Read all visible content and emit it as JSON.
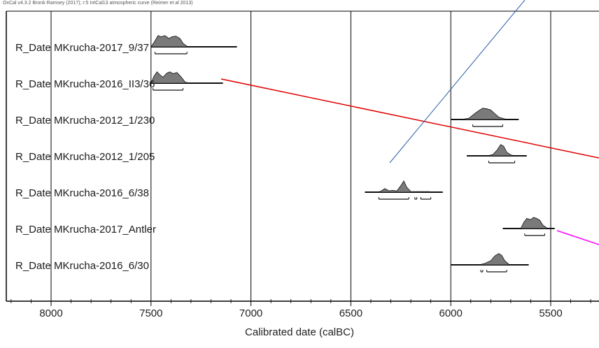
{
  "header": "OxCal v4.3.2 Bronk Ramsey (2017); r:5 IntCal13 atmospheric curve (Reimer et al 2013)",
  "chart_data": {
    "type": "area",
    "title": "",
    "xlabel": "Calibrated date (calBC)",
    "ylabel": "",
    "xlim": [
      8230,
      5240
    ],
    "x_direction": "decreasing",
    "xticks": [
      8000,
      7500,
      7000,
      6500,
      6000,
      5500
    ],
    "xtick_labels": [
      "8000",
      "7500",
      "7000",
      "6500",
      "6000",
      "5500"
    ],
    "minor_tick_step": 100,
    "grid": "vertical lines at major ticks",
    "colors": {
      "distribution": "#7a7a7a",
      "outline": "#111111",
      "axis": "#000000",
      "red_line": "#e00000",
      "blue_line": "#2a5da8",
      "magenta_line": "#ff00ff"
    },
    "series": [
      {
        "name": "R_Date MKrucha-2017_9/37",
        "range": [
          7500,
          7070
        ],
        "profile": [
          [
            7500,
            0
          ],
          [
            7480,
            0.5
          ],
          [
            7465,
            0.95
          ],
          [
            7450,
            0.85
          ],
          [
            7430,
            0.95
          ],
          [
            7410,
            0.7
          ],
          [
            7395,
            0.85
          ],
          [
            7375,
            0.9
          ],
          [
            7355,
            0.7
          ],
          [
            7340,
            0.3
          ],
          [
            7320,
            0.05
          ],
          [
            7300,
            0
          ]
        ],
        "hpd_95": [
          [
            7480,
            7320
          ]
        ]
      },
      {
        "name": "R_Date MKrucha-2016_II3/36",
        "range": [
          7500,
          7140
        ],
        "profile": [
          [
            7500,
            0
          ],
          [
            7485,
            0.6
          ],
          [
            7470,
            0.95
          ],
          [
            7455,
            0.7
          ],
          [
            7440,
            0.5
          ],
          [
            7420,
            0.85
          ],
          [
            7405,
            0.95
          ],
          [
            7390,
            0.8
          ],
          [
            7370,
            0.9
          ],
          [
            7350,
            0.55
          ],
          [
            7330,
            0.1
          ],
          [
            7310,
            0
          ]
        ],
        "hpd_95": [
          [
            7490,
            7340
          ]
        ]
      },
      {
        "name": "R_Date MKrucha-2012_1/230",
        "range": [
          6000,
          5660
        ],
        "profile": [
          [
            5950,
            0
          ],
          [
            5910,
            0.1
          ],
          [
            5880,
            0.5
          ],
          [
            5860,
            0.75
          ],
          [
            5840,
            0.95
          ],
          [
            5820,
            0.9
          ],
          [
            5800,
            0.8
          ],
          [
            5780,
            0.5
          ],
          [
            5760,
            0.2
          ],
          [
            5730,
            0.05
          ],
          [
            5700,
            0
          ]
        ],
        "hpd_95": [
          [
            5890,
            5740
          ]
        ]
      },
      {
        "name": "R_Date MKrucha-2012_1/205",
        "range": [
          5920,
          5620
        ],
        "profile": [
          [
            5820,
            0
          ],
          [
            5790,
            0.1
          ],
          [
            5770,
            0.45
          ],
          [
            5750,
            0.95
          ],
          [
            5735,
            0.8
          ],
          [
            5720,
            0.3
          ],
          [
            5700,
            0.08
          ],
          [
            5680,
            0
          ]
        ],
        "hpd_95": [
          [
            5810,
            5680
          ]
        ]
      },
      {
        "name": "R_Date MKrucha-2016_6/38",
        "range": [
          6430,
          6040
        ],
        "profile": [
          [
            6370,
            0
          ],
          [
            6350,
            0.08
          ],
          [
            6330,
            0.3
          ],
          [
            6310,
            0.12
          ],
          [
            6290,
            0.15
          ],
          [
            6270,
            0.1
          ],
          [
            6250,
            0.55
          ],
          [
            6235,
            0.95
          ],
          [
            6220,
            0.4
          ],
          [
            6200,
            0.06
          ],
          [
            6150,
            0.05
          ],
          [
            6110,
            0.05
          ],
          [
            6080,
            0
          ]
        ],
        "hpd_95": [
          [
            6360,
            6210
          ],
          [
            6180,
            6170
          ],
          [
            6150,
            6100
          ]
        ]
      },
      {
        "name": "R_Date MKrucha-2017_Antler",
        "range": [
          5740,
          5480
        ],
        "profile": [
          [
            5650,
            0
          ],
          [
            5635,
            0.5
          ],
          [
            5620,
            0.85
          ],
          [
            5600,
            0.75
          ],
          [
            5585,
            0.95
          ],
          [
            5570,
            0.85
          ],
          [
            5555,
            0.7
          ],
          [
            5540,
            0.3
          ],
          [
            5520,
            0.05
          ],
          [
            5500,
            0
          ]
        ],
        "hpd_95": [
          [
            5630,
            5530
          ]
        ]
      },
      {
        "name": "R_Date MKrucha-2016_6/30",
        "range": [
          6000,
          5610
        ],
        "profile": [
          [
            5860,
            0
          ],
          [
            5830,
            0.12
          ],
          [
            5800,
            0.35
          ],
          [
            5780,
            0.75
          ],
          [
            5760,
            0.95
          ],
          [
            5745,
            0.8
          ],
          [
            5730,
            0.35
          ],
          [
            5710,
            0.05
          ],
          [
            5690,
            0
          ]
        ],
        "hpd_95": [
          [
            5850,
            5840
          ],
          [
            5820,
            5720
          ]
        ]
      }
    ]
  }
}
